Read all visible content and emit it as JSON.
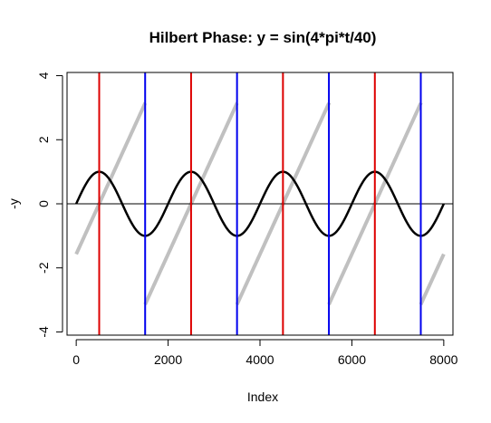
{
  "chart_data": {
    "type": "line",
    "title": "Hilbert Phase: y = sin(4*pi*t/40)",
    "xlabel": "Index",
    "ylabel": "-y",
    "xlim": [
      -200,
      8200
    ],
    "ylim": [
      -4.1,
      4.1
    ],
    "x_ticks": [
      0,
      2000,
      4000,
      6000,
      8000
    ],
    "x_tick_labels": [
      "0",
      "2000",
      "4000",
      "6000",
      "8000"
    ],
    "y_ticks": [
      -4,
      -2,
      0,
      2,
      4
    ],
    "y_tick_labels": [
      "-4",
      "-2",
      "0",
      "2",
      "4"
    ],
    "signal": {
      "name": "sine",
      "color": "#000000",
      "amplitude": 1,
      "period": 2000,
      "x_start": 0,
      "x_end": 8000
    },
    "phase": {
      "name": "hilbert-phase",
      "color": "#c0c0c0",
      "start_value": -1.571,
      "period": 2000,
      "x_start": 0,
      "x_end": 8000
    },
    "zero_line": {
      "y": 0,
      "color": "#000000"
    },
    "red_lines": {
      "color": "#dd0000",
      "x": [
        500,
        2500,
        4500,
        6500
      ]
    },
    "blue_lines": {
      "color": "#0000ee",
      "x": [
        1500,
        3500,
        5500,
        7500
      ]
    }
  }
}
